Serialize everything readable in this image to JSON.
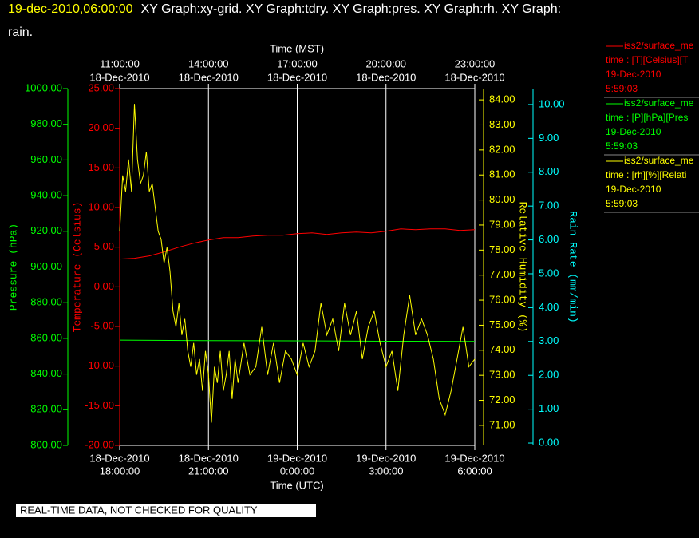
{
  "chart_data": {
    "type": "line",
    "title_lines": [
      "19-dec-2010,06:00:00",
      "XY Graph:xy-grid.  XY Graph:tdry.  XY Graph:pres.  XY Graph:rh.  XY Graph:",
      "rain."
    ],
    "x_title_top": "Time (MST)",
    "x_title": "Time (UTC)",
    "xlim": [
      0,
      12
    ],
    "xticks": [
      {
        "value": 0,
        "label": [
          "18-Dec-2010",
          "18:00:00"
        ]
      },
      {
        "value": 3,
        "label": [
          "18-Dec-2010",
          "21:00:00"
        ]
      },
      {
        "value": 6,
        "label": [
          "19-Dec-2010",
          "0:00:00"
        ]
      },
      {
        "value": 9,
        "label": [
          "19-Dec-2010",
          "3:00:00"
        ]
      },
      {
        "value": 12,
        "label": [
          "19-Dec-2010",
          "6:00:00"
        ]
      }
    ],
    "xticks_top": [
      {
        "value": 0,
        "label": [
          "11:00:00",
          "18-Dec-2010"
        ]
      },
      {
        "value": 3,
        "label": [
          "14:00:00",
          "18-Dec-2010"
        ]
      },
      {
        "value": 6,
        "label": [
          "17:00:00",
          "18-Dec-2010"
        ]
      },
      {
        "value": 9,
        "label": [
          "20:00:00",
          "18-Dec-2010"
        ]
      },
      {
        "value": 12,
        "label": [
          "23:00:00",
          "18-Dec-2010"
        ]
      }
    ],
    "grid": true,
    "axes": [
      {
        "title": "Temperature (Celsius)",
        "color": "#ff0000",
        "ylim": [
          -20,
          25
        ],
        "yticks": [
          {
            "value": 25,
            "label": "25.00"
          },
          {
            "value": 20,
            "label": "20.00"
          },
          {
            "value": 15,
            "label": "15.00"
          },
          {
            "value": 10,
            "label": "10.00"
          },
          {
            "value": 5,
            "label": "5.00"
          },
          {
            "value": 0,
            "label": "0.00"
          },
          {
            "value": -5,
            "label": "-5.00"
          },
          {
            "value": -10,
            "label": "-10.00"
          },
          {
            "value": -15,
            "label": "-15.00"
          },
          {
            "value": -20,
            "label": "-20.00"
          }
        ]
      },
      {
        "title": "Pressure (hPa)",
        "color": "#00ff00",
        "ylim": [
          800,
          1000
        ],
        "yticks": [
          {
            "value": 1000,
            "label": "1000.00"
          },
          {
            "value": 980,
            "label": "980.00"
          },
          {
            "value": 960,
            "label": "960.00"
          },
          {
            "value": 940,
            "label": "940.00"
          },
          {
            "value": 920,
            "label": "920.00"
          },
          {
            "value": 900,
            "label": "900.00"
          },
          {
            "value": 880,
            "label": "880.00"
          },
          {
            "value": 860,
            "label": "860.00"
          },
          {
            "value": 840,
            "label": "840.00"
          },
          {
            "value": 820,
            "label": "820.00"
          },
          {
            "value": 800,
            "label": "800.00"
          }
        ]
      },
      {
        "title": "Relative Humidity (%)",
        "color": "#ffff00",
        "ylim": [
          70.2,
          84.45
        ],
        "yticks": [
          {
            "value": 84,
            "label": "84.00"
          },
          {
            "value": 83,
            "label": "83.00"
          },
          {
            "value": 82,
            "label": "82.00"
          },
          {
            "value": 81,
            "label": "81.00"
          },
          {
            "value": 80,
            "label": "80.00"
          },
          {
            "value": 79,
            "label": "79.00"
          },
          {
            "value": 78,
            "label": "78.00"
          },
          {
            "value": 77,
            "label": "77.00"
          },
          {
            "value": 76,
            "label": "76.00"
          },
          {
            "value": 75,
            "label": "75.00"
          },
          {
            "value": 74,
            "label": "74.00"
          },
          {
            "value": 73,
            "label": "73.00"
          },
          {
            "value": 72,
            "label": "72.00"
          },
          {
            "value": 71,
            "label": "71.00"
          }
        ]
      },
      {
        "title": "Rain Rate (mm/min)",
        "color": "#00ffff",
        "ylim": [
          -0.07,
          10.47
        ],
        "yticks": [
          {
            "value": 10,
            "label": "10.00"
          },
          {
            "value": 9,
            "label": "9.00"
          },
          {
            "value": 8,
            "label": "8.00"
          },
          {
            "value": 7,
            "label": "7.00"
          },
          {
            "value": 6,
            "label": "6.00"
          },
          {
            "value": 5,
            "label": "5.00"
          },
          {
            "value": 4,
            "label": "4.00"
          },
          {
            "value": 3,
            "label": "3.00"
          },
          {
            "value": 2,
            "label": "2.00"
          },
          {
            "value": 1,
            "label": "1.00"
          },
          {
            "value": 0,
            "label": "0.00"
          }
        ]
      }
    ],
    "series": [
      {
        "name": "iss2/surface_me",
        "legend_lines": [
          "time : [T][Celsius][T",
          "19-Dec-2010",
          "5:59:03"
        ],
        "color": "#ff0000",
        "axis": 0,
        "x": [
          0,
          0.5,
          1,
          1.5,
          2,
          2.5,
          3,
          3.5,
          4,
          4.5,
          5,
          5.5,
          6,
          6.5,
          7,
          7.5,
          8,
          8.5,
          9,
          9.5,
          10,
          10.5,
          11,
          11.5,
          12
        ],
        "values": [
          3.5,
          3.6,
          3.9,
          4.4,
          5.0,
          5.5,
          5.9,
          6.2,
          6.2,
          6.4,
          6.5,
          6.5,
          6.7,
          6.8,
          6.6,
          6.8,
          6.9,
          6.8,
          7.0,
          7.3,
          7.2,
          7.3,
          7.3,
          7.1,
          7.2
        ]
      },
      {
        "name": "iss2/surface_me",
        "legend_lines": [
          "time : [P][hPa][Pres",
          "19-Dec-2010",
          "5:59:03"
        ],
        "color": "#00ff00",
        "axis": 1,
        "x": [
          0,
          3,
          6,
          9,
          12
        ],
        "values": [
          859.0,
          858.7,
          858.6,
          858.4,
          858.3
        ]
      },
      {
        "name": "iss2/surface_me",
        "legend_lines": [
          "time : [rh][%][Relati",
          "19-Dec-2010",
          "5:59:03"
        ],
        "color": "#ffff00",
        "axis": 2,
        "x": [
          0,
          0.1,
          0.2,
          0.3,
          0.4,
          0.5,
          0.6,
          0.7,
          0.8,
          0.9,
          1.0,
          1.1,
          1.2,
          1.3,
          1.4,
          1.5,
          1.6,
          1.7,
          1.8,
          1.9,
          2.0,
          2.1,
          2.2,
          2.3,
          2.4,
          2.5,
          2.6,
          2.7,
          2.8,
          2.9,
          3.0,
          3.1,
          3.2,
          3.3,
          3.4,
          3.5,
          3.6,
          3.7,
          3.8,
          3.9,
          4.0,
          4.2,
          4.4,
          4.6,
          4.8,
          5.0,
          5.2,
          5.4,
          5.6,
          5.8,
          6.0,
          6.2,
          6.4,
          6.6,
          6.8,
          7.0,
          7.2,
          7.4,
          7.6,
          7.8,
          8.0,
          8.2,
          8.4,
          8.6,
          8.8,
          9.0,
          9.2,
          9.4,
          9.6,
          9.8,
          10.0,
          10.2,
          10.4,
          10.6,
          10.8,
          11.0,
          11.2,
          11.4,
          11.6,
          11.8,
          12.0
        ],
        "values": [
          78.75,
          80.98,
          80.34,
          81.62,
          80.34,
          83.84,
          81.62,
          80.66,
          80.98,
          81.93,
          80.34,
          80.66,
          79.7,
          78.75,
          78.43,
          77.48,
          78.11,
          77.16,
          75.56,
          74.93,
          75.88,
          74.61,
          75.25,
          73.97,
          73.34,
          74.29,
          73.02,
          73.65,
          72.38,
          73.97,
          73.02,
          71.11,
          73.34,
          72.7,
          73.97,
          72.38,
          73.02,
          73.97,
          72.06,
          73.65,
          72.7,
          74.29,
          73.02,
          73.34,
          74.93,
          73.02,
          74.29,
          72.7,
          73.97,
          73.65,
          73.02,
          74.29,
          73.34,
          73.97,
          75.88,
          74.61,
          75.25,
          73.97,
          75.88,
          74.61,
          75.56,
          73.65,
          74.93,
          75.56,
          74.29,
          73.34,
          73.97,
          72.38,
          74.61,
          76.2,
          74.61,
          75.25,
          74.61,
          73.65,
          72.06,
          71.42,
          72.38,
          73.65,
          74.93,
          73.34,
          73.65
        ]
      }
    ],
    "note": "REAL-TIME DATA, NOT CHECKED FOR QUALITY"
  }
}
